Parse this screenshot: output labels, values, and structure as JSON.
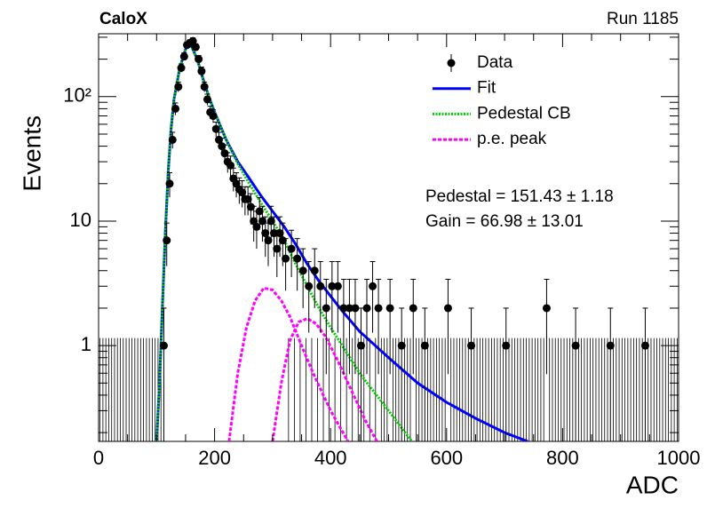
{
  "chart_data": {
    "type": "histogram-fit",
    "title": "CaloX",
    "run_label": "Run 1185",
    "x_label": "ADC",
    "y_label": "Events",
    "log_y": true,
    "xlim": [
      0,
      1000
    ],
    "ylim": [
      0.17,
      320
    ],
    "xticks": [
      0,
      200,
      400,
      600,
      800,
      1000
    ],
    "xminor": [
      50,
      100,
      150,
      250,
      300,
      350,
      450,
      500,
      550,
      650,
      700,
      750,
      850,
      900,
      950
    ],
    "yticks": [
      1,
      10,
      {
        "value": 100,
        "label": "10²"
      }
    ],
    "yminor": [
      0.2,
      0.3,
      0.4,
      0.5,
      0.6,
      0.7,
      0.8,
      0.9,
      2,
      3,
      4,
      5,
      6,
      7,
      8,
      9,
      20,
      30,
      40,
      50,
      60,
      70,
      80,
      90,
      200,
      300
    ],
    "annotations": [
      "Pedestal = 151.43 ± 1.18",
      "Gain = 66.98 ± 13.01"
    ],
    "data": {
      "name": "Data",
      "color": "#000000",
      "bin_width": 5,
      "empty_bin_error": 1.15,
      "x": [
        112.5,
        117.5,
        122.5,
        127.5,
        132.5,
        137.5,
        142.5,
        147.5,
        152.5,
        157.5,
        162.5,
        167.5,
        172.5,
        177.5,
        182.5,
        187.5,
        192.5,
        197.5,
        202.5,
        207.5,
        212.5,
        217.5,
        222.5,
        227.5,
        232.5,
        237.5,
        242.5,
        247.5,
        252.5,
        257.5,
        262.5,
        267.5,
        272.5,
        277.5,
        282.5,
        287.5,
        292.5,
        297.5,
        302.5,
        307.5,
        312.5,
        317.5,
        322.5,
        332.5,
        342.5,
        352.5,
        362.5,
        372.5,
        382.5,
        392.5,
        402.5,
        412.5,
        422.5,
        432.5,
        442.5,
        452.5,
        462.5,
        472.5,
        482.5,
        502.5,
        522.5,
        542.5,
        562.5,
        602.5,
        642.5,
        702.5,
        772.5,
        822.5,
        882.5,
        942.5
      ],
      "values": [
        1,
        7,
        20,
        45,
        80,
        120,
        170,
        210,
        260,
        270,
        280,
        250,
        200,
        160,
        120,
        95,
        75,
        70,
        55,
        45,
        40,
        35,
        30,
        28,
        22,
        20,
        18,
        17,
        15,
        15,
        13,
        10,
        9,
        12,
        10,
        8,
        7,
        10,
        8,
        6,
        8,
        7,
        5,
        6,
        5,
        4,
        3,
        4,
        3,
        2,
        3,
        3,
        2,
        2,
        2,
        1,
        2,
        3,
        2,
        2,
        1,
        2,
        1,
        2,
        1,
        1,
        2,
        1,
        1,
        1
      ],
      "errors": [
        1,
        2.65,
        4.47,
        6.71,
        8.94,
        10.95,
        13.04,
        14.49,
        16.12,
        16.43,
        16.73,
        15.81,
        14.14,
        12.65,
        10.95,
        9.75,
        8.66,
        8.37,
        7.42,
        6.71,
        6.32,
        5.92,
        5.48,
        5.29,
        4.69,
        4.47,
        4.24,
        4.12,
        3.87,
        3.87,
        3.61,
        3.16,
        3,
        3.46,
        3.16,
        2.83,
        2.65,
        3.16,
        2.83,
        2.45,
        2.83,
        2.65,
        2.24,
        2.45,
        2.24,
        2,
        1.73,
        2,
        1.73,
        1.41,
        1.73,
        1.73,
        1.41,
        1.41,
        1.41,
        1,
        1.41,
        1.73,
        1.41,
        1.41,
        1,
        1.41,
        1,
        1.41,
        1,
        1,
        1.41,
        1,
        1,
        1
      ]
    },
    "series": [
      {
        "name": "Fit",
        "color": "#0000ff",
        "dash": "solid",
        "curves": [
          {
            "x": [
              100,
              105,
              110,
              115,
              120,
              125,
              130,
              140,
              150,
              155,
              160,
              170,
              180,
              190,
              200,
              220,
              240,
              260,
              280,
              300,
              320,
              340,
              360,
              380,
              400,
              420,
              450,
              500,
              550,
              600,
              650,
              700,
              740
            ],
            "values": [
              0.17,
              0.5,
              2,
              8,
              25,
              55,
              95,
              170,
              240,
              260,
              255,
              200,
              140,
              100,
              75,
              45,
              30,
              22,
              16,
              12,
              9,
              6.5,
              4.5,
              3.3,
              2.5,
              1.9,
              1.3,
              0.8,
              0.5,
              0.35,
              0.26,
              0.2,
              0.17
            ]
          }
        ]
      },
      {
        "name": "Pedestal CB",
        "color": "#00cc00",
        "dash": "dotted",
        "curves": [
          {
            "x": [
              100,
              105,
              110,
              115,
              120,
              125,
              130,
              140,
              150,
              155,
              160,
              170,
              180,
              190,
              200,
              220,
              240,
              260,
              280,
              300,
              320,
              340,
              360,
              380,
              400,
              420,
              450,
              500,
              540
            ],
            "values": [
              0.17,
              0.5,
              2,
              8,
              25,
              55,
              95,
              170,
              240,
              260,
              255,
              200,
              140,
              100,
              75,
              45,
              29,
              20,
              14,
              10,
              7,
              4.5,
              3,
              2,
              1.4,
              1,
              0.6,
              0.3,
              0.17
            ]
          }
        ]
      },
      {
        "name": "p.e. peak",
        "color": "#ff00ff",
        "dash": "dashed",
        "curves": [
          {
            "x": [
              225,
              240,
              255,
              270,
              285,
              300,
              315,
              330,
              350,
              370,
              400,
              430
            ],
            "values": [
              0.17,
              0.6,
              1.4,
              2.3,
              2.9,
              2.8,
              2.3,
              1.7,
              1,
              0.6,
              0.3,
              0.17
            ]
          },
          {
            "x": [
              300,
              315,
              330,
              345,
              360,
              375,
              390,
              410,
              430,
              460,
              480
            ],
            "values": [
              0.17,
              0.5,
              1.1,
              1.55,
              1.65,
              1.5,
              1.2,
              0.8,
              0.5,
              0.25,
              0.17
            ]
          }
        ]
      }
    ]
  }
}
